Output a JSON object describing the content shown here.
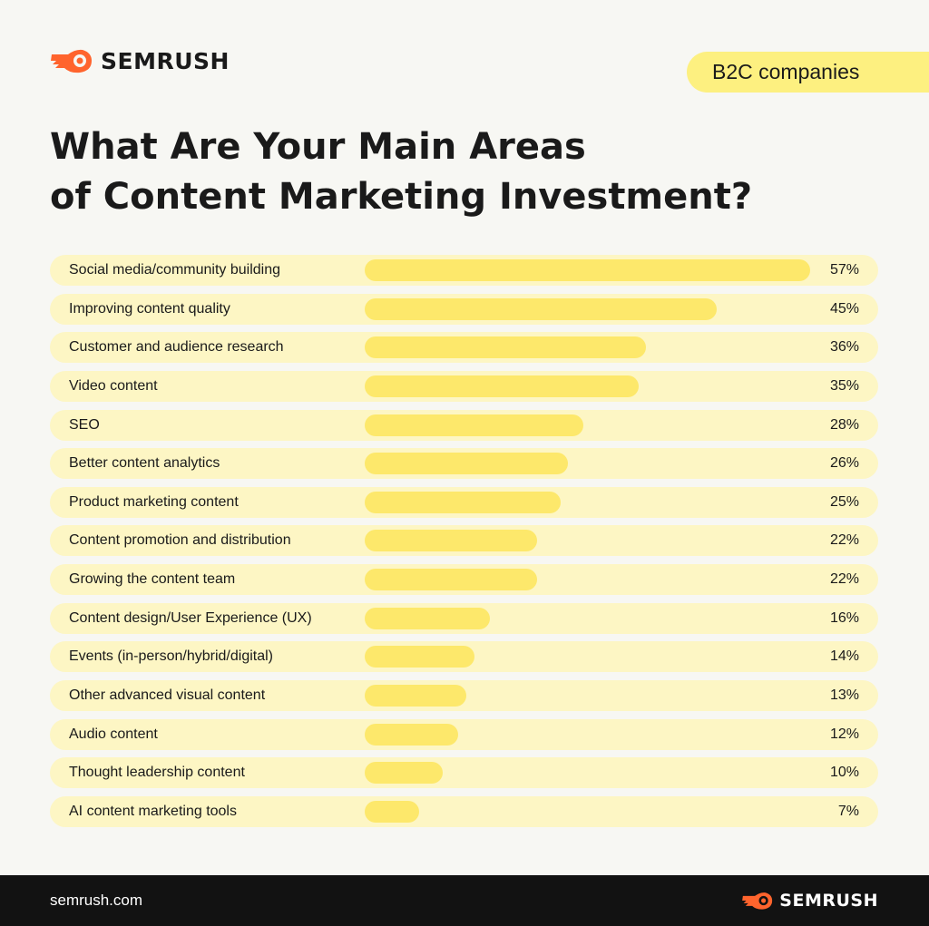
{
  "brand": {
    "name": "SEMRUSH",
    "accent": "#ff642d",
    "icon": "semrush-fire-icon"
  },
  "badge": {
    "label": "B2C companies",
    "color": "#fdf080"
  },
  "title": {
    "line1": "What Are Your Main Areas",
    "line2": "of Content Marketing Investment?"
  },
  "chart_data": {
    "type": "bar",
    "orientation": "horizontal",
    "title": "What Are Your Main Areas of Content Marketing Investment?",
    "categories": [
      "Social media/community building",
      "Improving content quality",
      "Customer and audience research",
      "Video content",
      "SEO",
      "Better content analytics",
      "Product marketing content",
      "Content promotion and distribution",
      "Growing the content team",
      "Content design/User Experience (UX)",
      "Events (in-person/hybrid/digital)",
      "Other advanced visual content",
      "Audio content",
      "Thought leadership content",
      "AI content marketing tools"
    ],
    "values": [
      57,
      45,
      36,
      35,
      28,
      26,
      25,
      22,
      22,
      16,
      14,
      13,
      12,
      10,
      7
    ],
    "value_labels": [
      "57%",
      "45%",
      "36%",
      "35%",
      "28%",
      "26%",
      "25%",
      "22%",
      "22%",
      "16%",
      "14%",
      "13%",
      "12%",
      "10%",
      "7%"
    ],
    "unit": "%",
    "bar_color": "#fde86b",
    "row_color": "#fdf6c4",
    "grid": false,
    "legend": "none"
  },
  "footer": {
    "url": "semrush.com",
    "background": "#121212"
  }
}
